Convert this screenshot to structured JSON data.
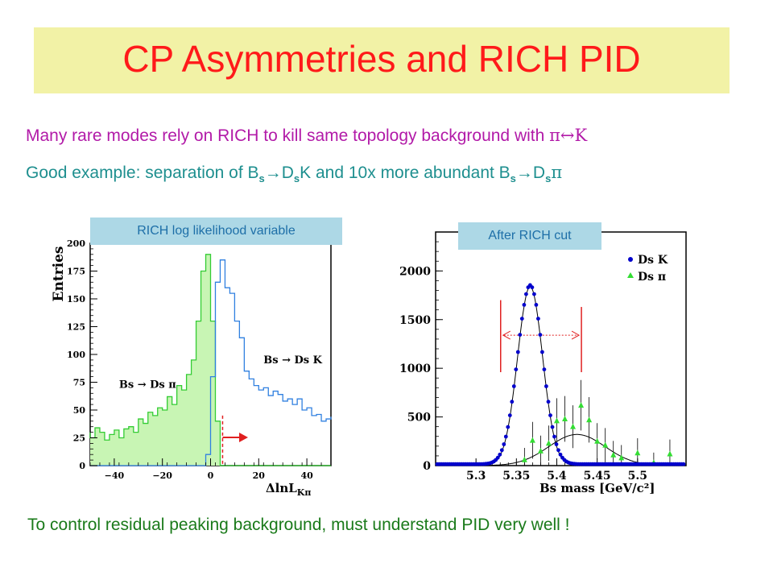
{
  "slide": {
    "title": "CP Asymmetries and RICH PID",
    "line1_text": "Many rare modes rely on RICH to kill same topology background with ",
    "line1_symbol": "π↔K",
    "line2_prefix": "Good example: separation of B",
    "line2_sub": "s",
    "line2_arrow1": "→D",
    "line2_mid": "K and 10x more abundant B",
    "line2_arrow2": "→D",
    "line2_pi": "π",
    "left_label": "RICH log likelihood variable",
    "right_label": "After RICH cut",
    "bottom_text": "To control residual peaking background, must understand PID very well !"
  },
  "colors": {
    "title_bg": "#f2f2a6",
    "title_text": "#ff1a1a",
    "line1": "#b21aa8",
    "line2": "#1e8f8f",
    "label_bg": "#add8e6",
    "bottom_text": "#1a7a1a",
    "dsk": "#0000cc",
    "dspi": "#33dd33",
    "cut": "#e02020"
  },
  "chart_data": [
    {
      "type": "histogram",
      "ylabel": "Entries",
      "xlabel": "ΔlnL_Kπ",
      "xlim": [
        -50,
        50
      ],
      "ylim": [
        0,
        200
      ],
      "xticks": [
        -40,
        -20,
        0,
        20,
        40
      ],
      "yticks": [
        0,
        25,
        50,
        75,
        100,
        125,
        150,
        175,
        200
      ],
      "bin_edges": [
        -52,
        -50,
        -48,
        -46,
        -44,
        -42,
        -40,
        -38,
        -36,
        -34,
        -32,
        -30,
        -28,
        -26,
        -24,
        -22,
        -20,
        -18,
        -16,
        -14,
        -12,
        -10,
        -8,
        -6,
        -4,
        -2,
        0,
        2,
        4,
        6,
        8,
        10,
        12,
        14,
        16,
        18,
        20,
        22,
        24,
        26,
        28,
        30,
        32,
        34,
        36,
        38,
        40,
        42,
        44,
        46,
        48,
        50,
        52
      ],
      "series": [
        {
          "name": "Bs → Ds π",
          "color": "#33cc33",
          "fill": "#c8f5b4",
          "values": [
            30,
            25,
            34,
            30,
            23,
            28,
            32,
            25,
            33,
            35,
            30,
            42,
            38,
            48,
            45,
            52,
            50,
            62,
            55,
            72,
            68,
            82,
            95,
            130,
            175,
            190,
            130,
            40,
            0,
            0,
            0,
            0,
            0,
            0,
            0,
            0,
            0,
            0,
            0,
            0,
            0,
            0,
            0,
            0,
            0,
            0,
            0,
            0,
            0,
            0,
            0,
            0
          ]
        },
        {
          "name": "Bs → Ds K",
          "color": "#3080e0",
          "values": [
            0,
            0,
            0,
            0,
            0,
            0,
            0,
            0,
            0,
            0,
            0,
            0,
            0,
            0,
            0,
            0,
            0,
            0,
            0,
            0,
            0,
            0,
            0,
            0,
            0,
            10,
            80,
            165,
            185,
            160,
            155,
            130,
            115,
            85,
            78,
            72,
            68,
            70,
            63,
            67,
            64,
            58,
            60,
            55,
            60,
            50,
            52,
            45,
            46,
            40,
            42,
            44
          ]
        }
      ],
      "annotations": [
        {
          "text": "Bs → Ds K",
          "x": 22,
          "y": 92
        },
        {
          "text": "Bs → Ds π",
          "x": -38,
          "y": 70
        }
      ],
      "cut_line_x": 5
    },
    {
      "type": "scatter",
      "xlabel": "Bs mass [GeV/c²]",
      "xlim": [
        5.25,
        5.56
      ],
      "ylim": [
        0,
        2400
      ],
      "xticks": [
        5.3,
        5.35,
        5.4,
        5.45,
        5.5
      ],
      "yticks": [
        0,
        500,
        1000,
        1500,
        2000
      ],
      "legend_placement": "top-right",
      "series": [
        {
          "name": "Ds K",
          "marker": "circle",
          "color": "#0000cc",
          "gauss": {
            "mean": 5.367,
            "sigma": 0.0155,
            "peak": 1840
          }
        },
        {
          "name": "Ds π",
          "marker": "triangle",
          "color": "#33dd33",
          "x": [
            5.36,
            5.37,
            5.38,
            5.39,
            5.4,
            5.41,
            5.42,
            5.43,
            5.44,
            5.45,
            5.46,
            5.47,
            5.48,
            5.5,
            5.52,
            5.54
          ],
          "y": [
            60,
            260,
            150,
            230,
            460,
            480,
            400,
            620,
            470,
            250,
            210,
            110,
            80,
            130,
            30,
            120
          ]
        }
      ],
      "fit_curves": [
        {
          "type": "gaussian",
          "mean": 5.367,
          "sigma": 0.0155,
          "peak": 1840
        },
        {
          "type": "gaussian",
          "mean": 5.425,
          "sigma": 0.035,
          "peak": 320
        }
      ],
      "mass_window": [
        5.3305,
        5.4305
      ]
    }
  ]
}
